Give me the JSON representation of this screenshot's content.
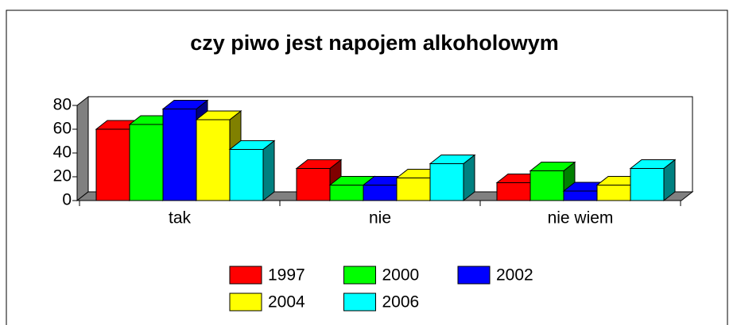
{
  "chart_data": {
    "type": "bar3d",
    "title": "czy piwo jest napojem alkoholowym",
    "categories": [
      "tak",
      "nie",
      "nie wiem"
    ],
    "series": [
      {
        "name": "1997",
        "color": "#ff0000",
        "side": "#800000",
        "values": [
          60,
          27,
          15
        ]
      },
      {
        "name": "2000",
        "color": "#00ff00",
        "side": "#008000",
        "values": [
          64,
          13,
          25
        ]
      },
      {
        "name": "2002",
        "color": "#0000ff",
        "side": "#000080",
        "values": [
          77,
          13,
          8
        ]
      },
      {
        "name": "2004",
        "color": "#ffff00",
        "side": "#808000",
        "values": [
          68,
          19,
          13
        ]
      },
      {
        "name": "2006",
        "color": "#00ffff",
        "side": "#008080",
        "values": [
          43,
          31,
          27
        ]
      }
    ],
    "ylim": [
      0,
      80
    ],
    "yticks": [
      0,
      20,
      40,
      60,
      80
    ],
    "floor_color": "#808080"
  }
}
